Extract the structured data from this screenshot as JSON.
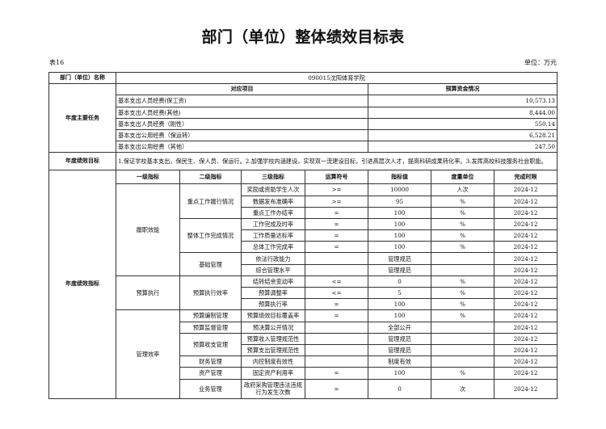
{
  "title": "部门（单位）整体绩效目标表",
  "table_no": "表16",
  "unit": "单位：万元",
  "dept_label": "部门（单位）名称",
  "dept_name": "090015沈阳体育学院",
  "tasks": {
    "label": "年度主要任务",
    "col_item": "对应项目",
    "col_budget": "预算资金情况",
    "rows": [
      {
        "item": "基本支出人员经费(保工资)",
        "amount": "10,573.13"
      },
      {
        "item": "基本支出人员经费(其他)",
        "amount": "8,444.00"
      },
      {
        "item": "基本支出人员经费（刚性）",
        "amount": "550.14"
      },
      {
        "item": "基本支出公用经费（保运转）",
        "amount": "6,528.21"
      },
      {
        "item": "基本支出公用经费（其他）",
        "amount": "247.50"
      }
    ]
  },
  "goal": {
    "label": "年度绩效目标",
    "text": "1.保证学校基本支出，保民生、保人员、保运行。2.加强学校内涵建设，实现双一流建设目标，引进高层次人才，提高科研成果转化率。3.发挥高校科技服务社会职能。"
  },
  "indicators": {
    "label": "年度绩效指标",
    "headers": [
      "一级指标",
      "二级指标",
      "三级指标",
      "运算符号",
      "指标值",
      "度量单位",
      "完成时限"
    ],
    "rows": [
      {
        "l1": "履职效能",
        "l2": "重点工作履行情况",
        "l3": "奖励或资助学生人次",
        "op": ">=",
        "val": "10000",
        "unit": "人次",
        "due": "2024-12"
      },
      {
        "l1": "履职效能",
        "l2": "重点工作履行情况",
        "l3": "数据发布准确率",
        "op": ">=",
        "val": "95",
        "unit": "%",
        "due": "2024-12"
      },
      {
        "l1": "履职效能",
        "l2": "重点工作履行情况",
        "l3": "重点工作办结率",
        "op": "=",
        "val": "100",
        "unit": "%",
        "due": "2024-12"
      },
      {
        "l1": "履职效能",
        "l2": "整体工作完成情况",
        "l3": "工作完成及时率",
        "op": "=",
        "val": "100",
        "unit": "%",
        "due": "2024-12"
      },
      {
        "l1": "履职效能",
        "l2": "整体工作完成情况",
        "l3": "工作质量达标率",
        "op": "=",
        "val": "100",
        "unit": "%",
        "due": "2024-12"
      },
      {
        "l1": "履职效能",
        "l2": "整体工作完成情况",
        "l3": "总体工作完成率",
        "op": "=",
        "val": "100",
        "unit": "%",
        "due": "2024-12"
      },
      {
        "l1": "履职效能",
        "l2": "基础管理",
        "l3": "依法行政能力",
        "op": "",
        "val": "管理规范",
        "unit": "",
        "due": "2024-12"
      },
      {
        "l1": "履职效能",
        "l2": "基础管理",
        "l3": "综合管理水平",
        "op": "",
        "val": "管理规范",
        "unit": "",
        "due": "2024-12"
      },
      {
        "l1": "预算执行",
        "l2": "预算执行效率",
        "l3": "结转结余变动率",
        "op": "<=",
        "val": "0",
        "unit": "%",
        "due": "2024-12"
      },
      {
        "l1": "预算执行",
        "l2": "预算执行效率",
        "l3": "预算调整率",
        "op": "<=",
        "val": "5",
        "unit": "%",
        "due": "2024-12"
      },
      {
        "l1": "预算执行",
        "l2": "预算执行效率",
        "l3": "预算执行率",
        "op": "=",
        "val": "100",
        "unit": "%",
        "due": "2024-12"
      },
      {
        "l1": "管理效率",
        "l2": "预算编制管理",
        "l3": "预算绩效目标覆盖率",
        "op": "=",
        "val": "100",
        "unit": "%",
        "due": "2024-12"
      },
      {
        "l1": "管理效率",
        "l2": "预算监督管理",
        "l3": "预决算公开情况",
        "op": "",
        "val": "全部公开",
        "unit": "",
        "due": "2024-12"
      },
      {
        "l1": "管理效率",
        "l2": "预算收支管理",
        "l3": "预算收入管理规范性",
        "op": "",
        "val": "管理规范",
        "unit": "",
        "due": "2024-12"
      },
      {
        "l1": "管理效率",
        "l2": "预算收支管理",
        "l3": "预算支出管理规范性",
        "op": "",
        "val": "管理规范",
        "unit": "",
        "due": "2024-12"
      },
      {
        "l1": "管理效率",
        "l2": "财务管理",
        "l3": "内控制度有效性",
        "op": "",
        "val": "制度有效",
        "unit": "",
        "due": "2024-12"
      },
      {
        "l1": "管理效率",
        "l2": "资产管理",
        "l3": "固定资产利用率",
        "op": "=",
        "val": "100",
        "unit": "%",
        "due": "2024-12"
      },
      {
        "l1": "管理效率",
        "l2": "业务管理",
        "l3": "政府采购管理违法违规行为发生次数",
        "op": "=",
        "val": "0",
        "unit": "次",
        "due": "2024-12"
      }
    ]
  }
}
